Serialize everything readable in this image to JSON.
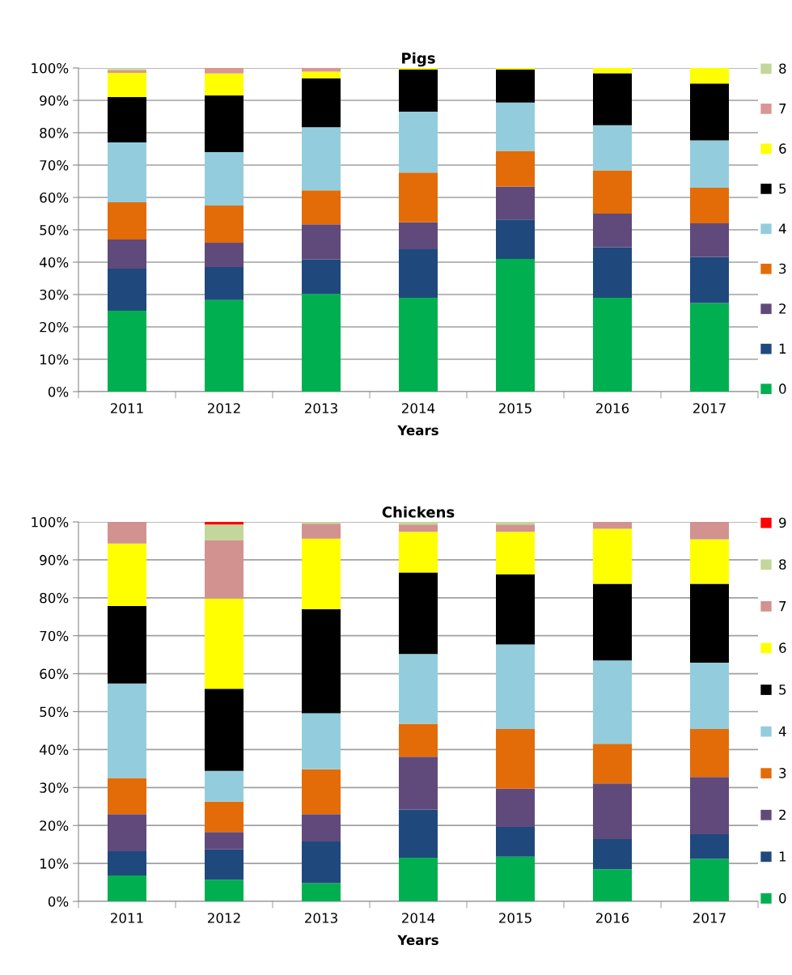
{
  "chart_data": [
    {
      "type": "bar",
      "title": "Pigs",
      "xlabel": "Years",
      "stacked": true,
      "legend": "right",
      "grid": "y",
      "categories": [
        "2011",
        "2012",
        "2013",
        "2014",
        "2015",
        "2016",
        "2017"
      ],
      "ylim": [
        0,
        100
      ],
      "yticks": [
        {
          "value": 0,
          "label": "0%"
        },
        {
          "value": 10,
          "label": "10%"
        },
        {
          "value": 20,
          "label": "20%"
        },
        {
          "value": 30,
          "label": "30%"
        },
        {
          "value": 40,
          "label": "40%"
        },
        {
          "value": 50,
          "label": "50%"
        },
        {
          "value": 60,
          "label": "60%"
        },
        {
          "value": 70,
          "label": "70%"
        },
        {
          "value": 80,
          "label": "80%"
        },
        {
          "value": 90,
          "label": "90%"
        },
        {
          "value": 100,
          "label": "100%"
        }
      ],
      "series": [
        {
          "name": "0",
          "color": "#00b050",
          "values": [
            25,
            28.3,
            30.2,
            29,
            41,
            29,
            27.4
          ]
        },
        {
          "name": "1",
          "color": "#1f497d",
          "values": [
            13,
            10.2,
            10.6,
            15,
            12.2,
            15.6,
            14.2
          ]
        },
        {
          "name": "2",
          "color": "#604a7b",
          "values": [
            9,
            7.5,
            10.9,
            8.3,
            10.2,
            10.4,
            10.4
          ]
        },
        {
          "name": "3",
          "color": "#e36c09",
          "values": [
            11.5,
            11.5,
            10.5,
            15.4,
            11,
            13.4,
            11
          ]
        },
        {
          "name": "4",
          "color": "#93cddd",
          "values": [
            18.5,
            16.5,
            19.5,
            18.8,
            14.9,
            13.9,
            14.6
          ]
        },
        {
          "name": "5",
          "color": "#000000",
          "values": [
            14,
            17.5,
            15.1,
            13,
            10.2,
            16.1,
            17.6
          ]
        },
        {
          "name": "6",
          "color": "#ffff00",
          "values": [
            7.5,
            6.8,
            2.1,
            0.5,
            0.5,
            1.6,
            4.8
          ]
        },
        {
          "name": "7",
          "color": "#d99694",
          "values": [
            0.8,
            1.7,
            1.1,
            0,
            0,
            0,
            0
          ]
        },
        {
          "name": "8",
          "color": "#c3d69b",
          "values": [
            0.7,
            0,
            0,
            0,
            0,
            0,
            0
          ]
        }
      ]
    },
    {
      "type": "bar",
      "title": "Chickens",
      "xlabel": "Years",
      "stacked": true,
      "legend": "right",
      "grid": "y",
      "categories": [
        "2011",
        "2012",
        "2013",
        "2014",
        "2015",
        "2016",
        "2017"
      ],
      "ylim": [
        0,
        100
      ],
      "yticks": [
        {
          "value": 0,
          "label": "0%"
        },
        {
          "value": 10,
          "label": "10%"
        },
        {
          "value": 20,
          "label": "20%"
        },
        {
          "value": 30,
          "label": "30%"
        },
        {
          "value": 40,
          "label": "40%"
        },
        {
          "value": 50,
          "label": "50%"
        },
        {
          "value": 60,
          "label": "60%"
        },
        {
          "value": 70,
          "label": "70%"
        },
        {
          "value": 80,
          "label": "80%"
        },
        {
          "value": 90,
          "label": "90%"
        },
        {
          "value": 100,
          "label": "100%"
        }
      ],
      "series": [
        {
          "name": "0",
          "color": "#00b050",
          "values": [
            6.8,
            5.7,
            4.8,
            11.5,
            11.8,
            8.5,
            11.2
          ]
        },
        {
          "name": "1",
          "color": "#1f497d",
          "values": [
            6.4,
            8.0,
            11.0,
            12.7,
            7.8,
            7.9,
            6.5
          ]
        },
        {
          "name": "2",
          "color": "#604a7b",
          "values": [
            9.8,
            4.6,
            7.2,
            13.9,
            10.1,
            14.7,
            15.1
          ]
        },
        {
          "name": "3",
          "color": "#e36c09",
          "values": [
            9.5,
            8.0,
            11.8,
            8.7,
            15.7,
            10.4,
            12.6
          ]
        },
        {
          "name": "4",
          "color": "#93cddd",
          "values": [
            24.9,
            8.1,
            14.8,
            18.4,
            22.3,
            22.0,
            17.5
          ]
        },
        {
          "name": "5",
          "color": "#000000",
          "values": [
            20.4,
            21.6,
            27.4,
            21.5,
            18.5,
            20.2,
            20.8
          ]
        },
        {
          "name": "6",
          "color": "#ffff00",
          "values": [
            16.5,
            23.8,
            18.6,
            10.7,
            11.2,
            14.5,
            11.7
          ]
        },
        {
          "name": "7",
          "color": "#d19290",
          "values": [
            5.7,
            15.3,
            3.9,
            1.9,
            1.9,
            1.8,
            4.6
          ]
        },
        {
          "name": "8",
          "color": "#c3d69b",
          "values": [
            0,
            4.2,
            0.5,
            0.7,
            0.7,
            0,
            0
          ]
        },
        {
          "name": "9",
          "color": "#ff0000",
          "values": [
            0,
            0.7,
            0,
            0,
            0,
            0,
            0
          ]
        }
      ]
    }
  ]
}
